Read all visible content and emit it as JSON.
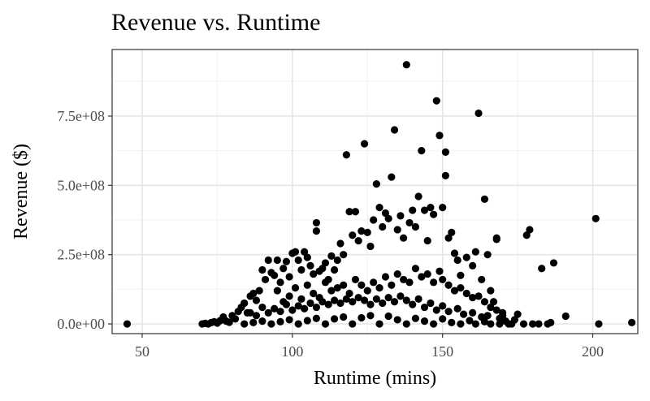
{
  "chart_data": {
    "type": "scatter",
    "title": "Revenue vs. Runtime",
    "xlabel": "Runtime (mins)",
    "ylabel": "Revenue ($)",
    "xlim": [
      40,
      215
    ],
    "ylim": [
      -35000000,
      990000000
    ],
    "x_ticks": [
      50,
      100,
      150,
      200
    ],
    "x_tick_labels": [
      "50",
      "100",
      "150",
      "200"
    ],
    "y_ticks": [
      0,
      250000000,
      500000000,
      750000000
    ],
    "y_tick_labels": [
      "0.0e+00",
      "2.5e+08",
      "5.0e+08",
      "7.5e+08"
    ],
    "grid": true,
    "theme": "bw",
    "point_color": "#000000",
    "series": [
      {
        "points": [
          [
            45,
            0
          ],
          [
            70,
            0
          ],
          [
            71,
            2000000
          ],
          [
            72,
            0
          ],
          [
            73,
            5000000
          ],
          [
            74,
            8000000
          ],
          [
            75,
            3000000
          ],
          [
            76,
            12000000
          ],
          [
            77,
            25000000
          ],
          [
            78,
            10000000
          ],
          [
            79,
            6000000
          ],
          [
            80,
            30000000
          ],
          [
            81,
            18000000
          ],
          [
            82,
            45000000
          ],
          [
            83,
            60000000
          ],
          [
            84,
            75000000
          ],
          [
            85,
            40000000
          ],
          [
            86,
            100000000
          ],
          [
            87,
            110000000
          ],
          [
            88,
            85000000
          ],
          [
            89,
            120000000
          ],
          [
            90,
            195000000
          ],
          [
            91,
            160000000
          ],
          [
            92,
            230000000
          ],
          [
            93,
            185000000
          ],
          [
            94,
            175000000
          ],
          [
            95,
            230000000
          ],
          [
            96,
            150000000
          ],
          [
            97,
            200000000
          ],
          [
            98,
            225000000
          ],
          [
            99,
            170000000
          ],
          [
            100,
            255000000
          ],
          [
            101,
            260000000
          ],
          [
            102,
            230000000
          ],
          [
            103,
            195000000
          ],
          [
            104,
            260000000
          ],
          [
            105,
            240000000
          ],
          [
            106,
            210000000
          ],
          [
            107,
            180000000
          ],
          [
            108,
            365000000
          ],
          [
            108,
            335000000
          ],
          [
            109,
            190000000
          ],
          [
            110,
            200000000
          ],
          [
            111,
            220000000
          ],
          [
            112,
            160000000
          ],
          [
            113,
            245000000
          ],
          [
            114,
            195000000
          ],
          [
            115,
            230000000
          ],
          [
            116,
            290000000
          ],
          [
            117,
            250000000
          ],
          [
            118,
            610000000
          ],
          [
            119,
            405000000
          ],
          [
            120,
            320000000
          ],
          [
            121,
            405000000
          ],
          [
            122,
            300000000
          ],
          [
            123,
            335000000
          ],
          [
            124,
            650000000
          ],
          [
            125,
            330000000
          ],
          [
            126,
            280000000
          ],
          [
            127,
            375000000
          ],
          [
            128,
            505000000
          ],
          [
            129,
            420000000
          ],
          [
            130,
            350000000
          ],
          [
            131,
            400000000
          ],
          [
            132,
            380000000
          ],
          [
            133,
            530000000
          ],
          [
            134,
            700000000
          ],
          [
            135,
            340000000
          ],
          [
            136,
            390000000
          ],
          [
            137,
            310000000
          ],
          [
            138,
            935000000
          ],
          [
            139,
            365000000
          ],
          [
            140,
            410000000
          ],
          [
            141,
            350000000
          ],
          [
            142,
            460000000
          ],
          [
            143,
            625000000
          ],
          [
            144,
            410000000
          ],
          [
            145,
            300000000
          ],
          [
            146,
            420000000
          ],
          [
            147,
            395000000
          ],
          [
            148,
            805000000
          ],
          [
            149,
            680000000
          ],
          [
            150,
            420000000
          ],
          [
            151,
            620000000
          ],
          [
            151,
            535000000
          ],
          [
            152,
            310000000
          ],
          [
            153,
            330000000
          ],
          [
            154,
            255000000
          ],
          [
            155,
            230000000
          ],
          [
            156,
            175000000
          ],
          [
            158,
            240000000
          ],
          [
            160,
            210000000
          ],
          [
            161,
            260000000
          ],
          [
            162,
            760000000
          ],
          [
            163,
            160000000
          ],
          [
            164,
            450000000
          ],
          [
            165,
            250000000
          ],
          [
            166,
            120000000
          ],
          [
            167,
            80000000
          ],
          [
            168,
            305000000
          ],
          [
            168,
            310000000
          ],
          [
            170,
            40000000
          ],
          [
            171,
            10000000
          ],
          [
            172,
            0
          ],
          [
            173,
            0
          ],
          [
            175,
            35000000
          ],
          [
            177,
            0
          ],
          [
            178,
            320000000
          ],
          [
            179,
            340000000
          ],
          [
            180,
            0
          ],
          [
            182,
            0
          ],
          [
            183,
            200000000
          ],
          [
            185,
            0
          ],
          [
            186,
            5000000
          ],
          [
            187,
            220000000
          ],
          [
            191,
            28000000
          ],
          [
            201,
            380000000
          ],
          [
            202,
            0
          ],
          [
            213,
            5000000
          ],
          [
            95,
            120000000
          ],
          [
            97,
            80000000
          ],
          [
            99,
            100000000
          ],
          [
            101,
            130000000
          ],
          [
            103,
            90000000
          ],
          [
            105,
            140000000
          ],
          [
            107,
            110000000
          ],
          [
            109,
            95000000
          ],
          [
            111,
            150000000
          ],
          [
            113,
            120000000
          ],
          [
            115,
            130000000
          ],
          [
            117,
            140000000
          ],
          [
            119,
            110000000
          ],
          [
            121,
            160000000
          ],
          [
            123,
            140000000
          ],
          [
            125,
            120000000
          ],
          [
            127,
            150000000
          ],
          [
            129,
            130000000
          ],
          [
            131,
            170000000
          ],
          [
            133,
            140000000
          ],
          [
            135,
            180000000
          ],
          [
            137,
            160000000
          ],
          [
            139,
            150000000
          ],
          [
            141,
            200000000
          ],
          [
            143,
            170000000
          ],
          [
            145,
            180000000
          ],
          [
            147,
            150000000
          ],
          [
            149,
            190000000
          ],
          [
            150,
            160000000
          ],
          [
            152,
            140000000
          ],
          [
            154,
            120000000
          ],
          [
            156,
            130000000
          ],
          [
            158,
            110000000
          ],
          [
            160,
            95000000
          ],
          [
            162,
            100000000
          ],
          [
            164,
            80000000
          ],
          [
            166,
            60000000
          ],
          [
            168,
            50000000
          ],
          [
            170,
            30000000
          ],
          [
            174,
            15000000
          ],
          [
            86,
            40000000
          ],
          [
            88,
            30000000
          ],
          [
            90,
            60000000
          ],
          [
            92,
            40000000
          ],
          [
            94,
            55000000
          ],
          [
            96,
            45000000
          ],
          [
            98,
            70000000
          ],
          [
            100,
            50000000
          ],
          [
            102,
            65000000
          ],
          [
            104,
            55000000
          ],
          [
            106,
            75000000
          ],
          [
            108,
            60000000
          ],
          [
            110,
            80000000
          ],
          [
            112,
            70000000
          ],
          [
            114,
            85000000
          ],
          [
            116,
            75000000
          ],
          [
            118,
            90000000
          ],
          [
            120,
            80000000
          ],
          [
            122,
            95000000
          ],
          [
            124,
            85000000
          ],
          [
            126,
            70000000
          ],
          [
            128,
            90000000
          ],
          [
            130,
            75000000
          ],
          [
            132,
            95000000
          ],
          [
            134,
            80000000
          ],
          [
            136,
            100000000
          ],
          [
            138,
            85000000
          ],
          [
            140,
            70000000
          ],
          [
            142,
            90000000
          ],
          [
            144,
            60000000
          ],
          [
            146,
            75000000
          ],
          [
            148,
            50000000
          ],
          [
            150,
            65000000
          ],
          [
            152,
            45000000
          ],
          [
            155,
            55000000
          ],
          [
            157,
            35000000
          ],
          [
            160,
            40000000
          ],
          [
            163,
            25000000
          ],
          [
            165,
            30000000
          ],
          [
            169,
            20000000
          ],
          [
            84,
            0
          ],
          [
            87,
            5000000
          ],
          [
            90,
            10000000
          ],
          [
            93,
            0
          ],
          [
            96,
            8000000
          ],
          [
            99,
            15000000
          ],
          [
            102,
            0
          ],
          [
            105,
            12000000
          ],
          [
            108,
            20000000
          ],
          [
            111,
            0
          ],
          [
            114,
            18000000
          ],
          [
            117,
            25000000
          ],
          [
            120,
            0
          ],
          [
            123,
            22000000
          ],
          [
            126,
            30000000
          ],
          [
            129,
            0
          ],
          [
            132,
            28000000
          ],
          [
            135,
            15000000
          ],
          [
            138,
            0
          ],
          [
            141,
            20000000
          ],
          [
            144,
            10000000
          ],
          [
            147,
            0
          ],
          [
            150,
            18000000
          ],
          [
            153,
            5000000
          ],
          [
            156,
            0
          ],
          [
            159,
            12000000
          ],
          [
            161,
            0
          ],
          [
            164,
            8000000
          ],
          [
            166,
            0
          ],
          [
            169,
            0
          ]
        ]
      }
    ]
  }
}
